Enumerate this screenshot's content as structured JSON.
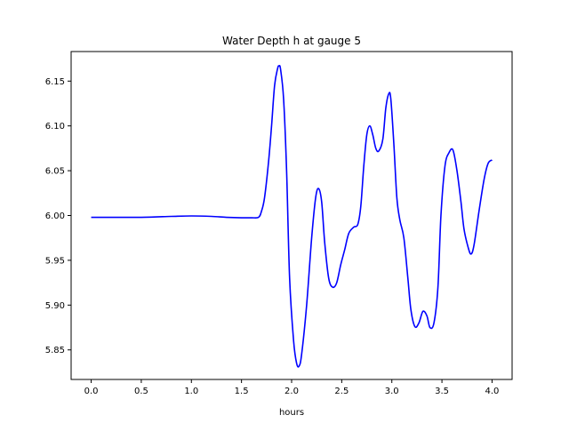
{
  "chart_data": {
    "type": "line",
    "title": "Water Depth h at gauge 5",
    "xlabel": "hours",
    "ylabel": "",
    "xlim": [
      -0.2,
      4.2
    ],
    "ylim": [
      5.817,
      6.183
    ],
    "xticks": [
      0.0,
      0.5,
      1.0,
      1.5,
      2.0,
      2.5,
      3.0,
      3.5,
      4.0
    ],
    "xtick_labels": [
      "0.0",
      "0.5",
      "1.0",
      "1.5",
      "2.0",
      "2.5",
      "3.0",
      "3.5",
      "4.0"
    ],
    "yticks": [
      5.85,
      5.9,
      5.95,
      6.0,
      6.05,
      6.1,
      6.15
    ],
    "ytick_labels": [
      "5.85",
      "5.90",
      "5.95",
      "6.00",
      "6.05",
      "6.10",
      "6.15"
    ],
    "grid": false,
    "legend": "none",
    "series": [
      {
        "color": "#0000ff",
        "x": [
          0.0,
          0.5,
          0.8,
          1.0,
          1.2,
          1.35,
          1.5,
          1.6,
          1.67,
          1.7,
          1.73,
          1.77,
          1.8,
          1.83,
          1.86,
          1.875,
          1.89,
          1.92,
          1.95,
          1.98,
          2.02,
          2.05,
          2.075,
          2.1,
          2.15,
          2.2,
          2.24,
          2.27,
          2.3,
          2.33,
          2.37,
          2.41,
          2.45,
          2.49,
          2.53,
          2.57,
          2.62,
          2.66,
          2.69,
          2.72,
          2.75,
          2.78,
          2.81,
          2.84,
          2.87,
          2.91,
          2.94,
          2.97,
          2.99,
          3.02,
          3.05,
          3.08,
          3.12,
          3.16,
          3.19,
          3.23,
          3.27,
          3.31,
          3.35,
          3.38,
          3.42,
          3.46,
          3.49,
          3.53,
          3.57,
          3.61,
          3.65,
          3.69,
          3.72,
          3.76,
          3.79,
          3.82,
          3.87,
          3.92,
          3.96,
          4.0
        ],
        "y": [
          5.998,
          5.998,
          5.999,
          5.9995,
          5.999,
          5.998,
          5.9975,
          5.9975,
          5.998,
          6.005,
          6.02,
          6.06,
          6.1,
          6.145,
          6.164,
          6.167,
          6.163,
          6.13,
          6.05,
          5.93,
          5.86,
          5.835,
          5.832,
          5.845,
          5.9,
          5.975,
          6.02,
          6.03,
          6.015,
          5.97,
          5.93,
          5.92,
          5.925,
          5.945,
          5.962,
          5.98,
          5.987,
          5.99,
          6.01,
          6.055,
          6.09,
          6.1,
          6.09,
          6.075,
          6.072,
          6.085,
          6.12,
          6.136,
          6.13,
          6.08,
          6.02,
          5.995,
          5.975,
          5.93,
          5.895,
          5.876,
          5.88,
          5.893,
          5.888,
          5.875,
          5.88,
          5.92,
          6.0,
          6.055,
          6.07,
          6.073,
          6.05,
          6.015,
          5.985,
          5.965,
          5.957,
          5.967,
          6.005,
          6.04,
          6.058,
          6.062
        ]
      }
    ]
  }
}
